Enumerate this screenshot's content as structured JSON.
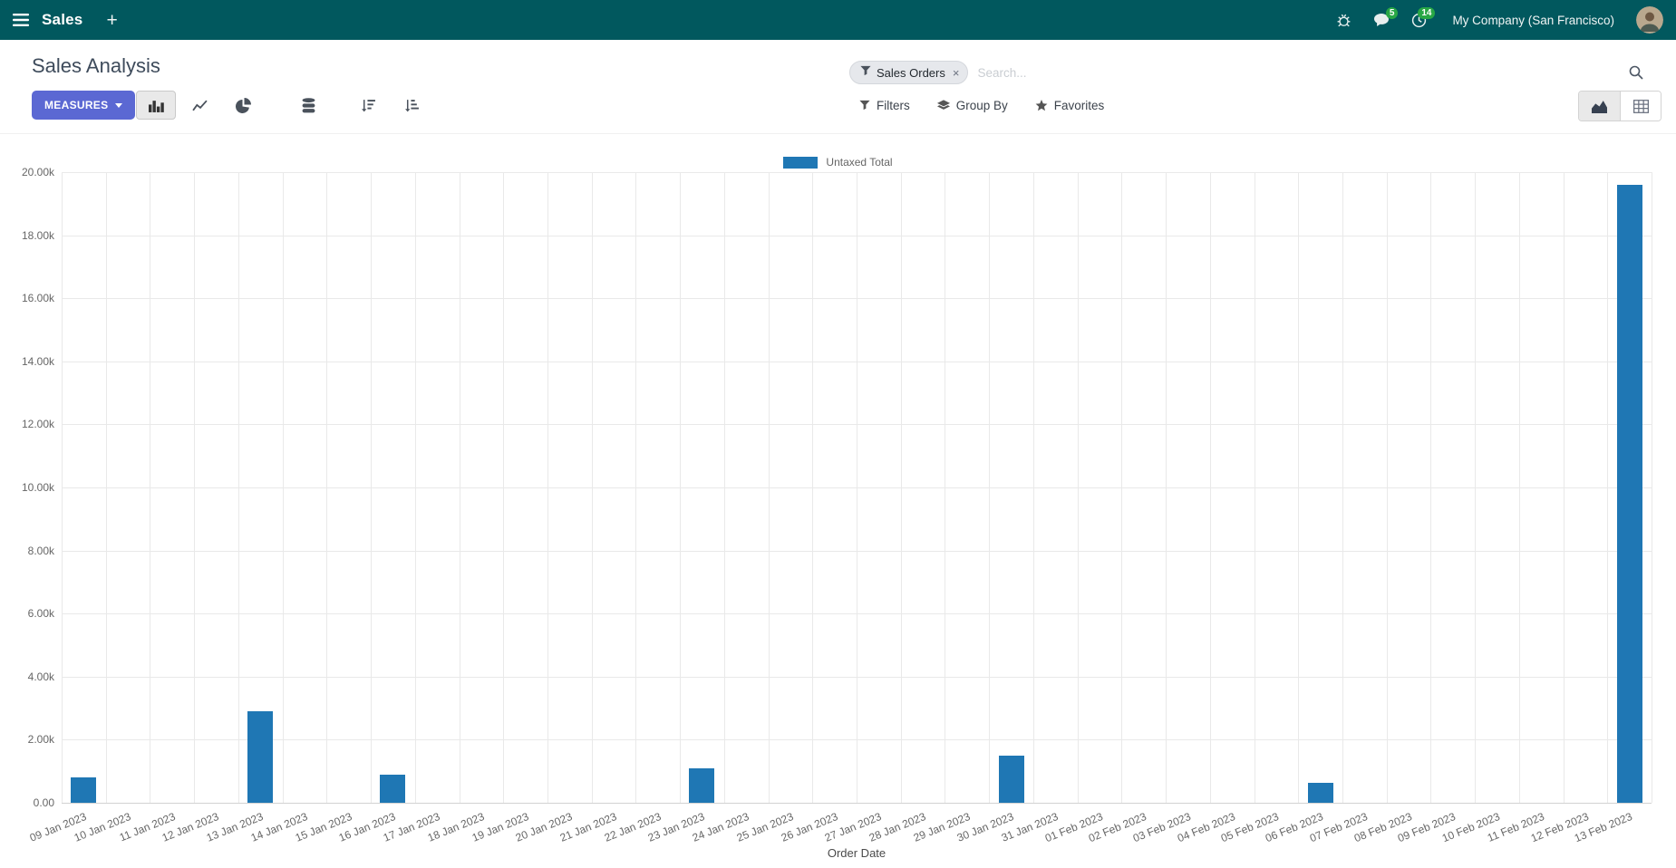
{
  "colors": {
    "navbar_bg": "#01585e",
    "primary": "#5b68d3",
    "badge": "#28a745",
    "bar": "#1f77b4"
  },
  "navbar": {
    "app_name": "Sales",
    "plus": "+",
    "message_badge": "5",
    "activity_badge": "14",
    "company": "My Company (San Francisco)"
  },
  "control_panel": {
    "title": "Sales Analysis",
    "search": {
      "facet_label": "Sales Orders",
      "remove": "×",
      "placeholder": "Search..."
    },
    "measures": {
      "label": "MEASURES"
    },
    "filters_label": "Filters",
    "group_by_label": "Group By",
    "favorites_label": "Favorites"
  },
  "chart_data": {
    "type": "bar",
    "legend": [
      "Untaxed Total"
    ],
    "legend_position": "top",
    "grid": true,
    "xlabel": "Order Date",
    "ylabel": "",
    "ylim": [
      0,
      20000
    ],
    "ytick_step": 2000,
    "ytick_labels": [
      "0.00",
      "2.00k",
      "4.00k",
      "6.00k",
      "8.00k",
      "10.00k",
      "12.00k",
      "14.00k",
      "16.00k",
      "18.00k",
      "20.00k"
    ],
    "categories": [
      "09 Jan 2023",
      "10 Jan 2023",
      "11 Jan 2023",
      "12 Jan 2023",
      "13 Jan 2023",
      "14 Jan 2023",
      "15 Jan 2023",
      "16 Jan 2023",
      "17 Jan 2023",
      "18 Jan 2023",
      "19 Jan 2023",
      "20 Jan 2023",
      "21 Jan 2023",
      "22 Jan 2023",
      "23 Jan 2023",
      "24 Jan 2023",
      "25 Jan 2023",
      "26 Jan 2023",
      "27 Jan 2023",
      "28 Jan 2023",
      "29 Jan 2023",
      "30 Jan 2023",
      "31 Jan 2023",
      "01 Feb 2023",
      "02 Feb 2023",
      "03 Feb 2023",
      "04 Feb 2023",
      "05 Feb 2023",
      "06 Feb 2023",
      "07 Feb 2023",
      "08 Feb 2023",
      "09 Feb 2023",
      "10 Feb 2023",
      "11 Feb 2023",
      "12 Feb 2023",
      "13 Feb 2023"
    ],
    "series": [
      {
        "name": "Untaxed Total",
        "color": "#1f77b4",
        "values": [
          800,
          0,
          0,
          0,
          2900,
          0,
          0,
          900,
          0,
          0,
          0,
          0,
          0,
          0,
          1080,
          0,
          0,
          0,
          0,
          0,
          0,
          1500,
          0,
          0,
          0,
          0,
          0,
          0,
          620,
          0,
          0,
          0,
          0,
          0,
          0,
          19600
        ]
      }
    ],
    "values": [
      800,
      0,
      0,
      0,
      2900,
      0,
      0,
      900,
      0,
      0,
      0,
      0,
      0,
      0,
      1080,
      0,
      0,
      0,
      0,
      0,
      0,
      1500,
      0,
      0,
      0,
      0,
      0,
      0,
      620,
      0,
      0,
      0,
      0,
      0,
      0,
      19600
    ]
  }
}
